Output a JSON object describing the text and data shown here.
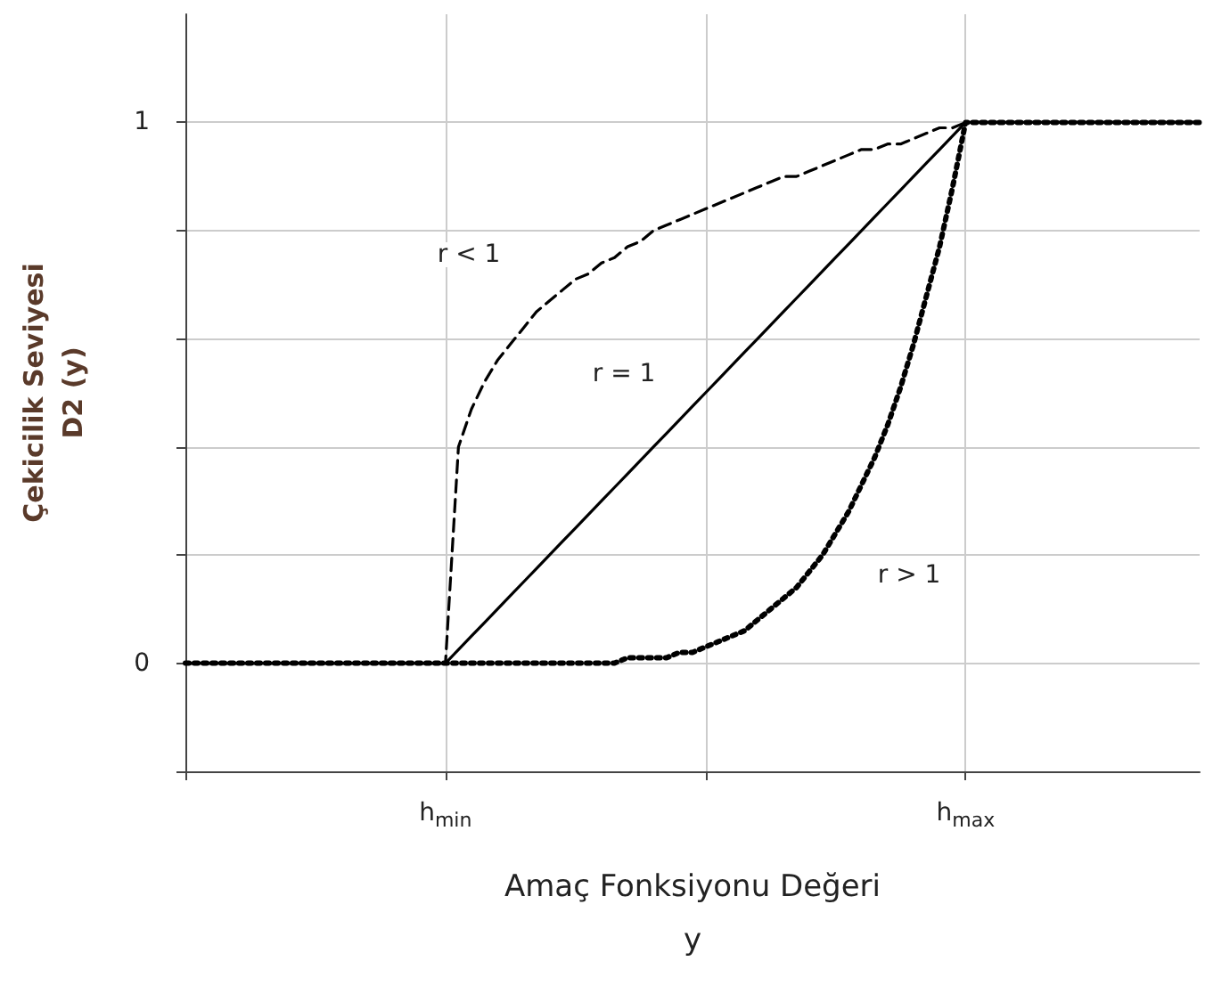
{
  "chart_data": {
    "type": "line",
    "xlabel": "Amaç Fonksiyonu Değeri\ny",
    "ylabel": "Çekicilik Seviyesi\nD2 (y)",
    "categories": [
      null,
      null,
      null,
      null,
      null,
      null,
      null,
      null,
      null,
      null,
      null,
      null,
      null,
      null,
      null,
      null,
      null,
      null,
      null,
      null,
      "h$_{min}$",
      null,
      null,
      null,
      null,
      null,
      null,
      null,
      null,
      null,
      null,
      null,
      null,
      null,
      null,
      null,
      null,
      null,
      null,
      null,
      null,
      null,
      null,
      null,
      null,
      null,
      null,
      null,
      null,
      null,
      null,
      null,
      null,
      null,
      null,
      null,
      null,
      null,
      null,
      null,
      "h$_{max}$",
      null,
      null,
      null,
      null,
      null,
      null,
      null,
      null,
      null,
      null,
      null,
      null,
      null,
      null,
      null,
      null,
      null,
      null
    ],
    "ylim": [
      -0.2,
      1.2
    ],
    "yticks": [
      {
        "value": -0.2,
        "label": null
      },
      0,
      {
        "value": 0.2,
        "label": null
      },
      {
        "value": 0.4,
        "label": null
      },
      {
        "value": 0.6,
        "label": null
      },
      {
        "value": 0.8,
        "label": null
      },
      1
    ],
    "grid": true,
    "marker": "none",
    "series": [
      {
        "name": "r < 1",
        "color": "#000000",
        "line_style": "dashed",
        "values": [
          0,
          0,
          0,
          0,
          0,
          0,
          0,
          0,
          0,
          0,
          0,
          0,
          0,
          0,
          0,
          0,
          0,
          0,
          0,
          0,
          0,
          0.4,
          0.47,
          0.52,
          0.56,
          0.59,
          0.62,
          0.65,
          0.67,
          0.69,
          0.71,
          0.72,
          0.74,
          0.75,
          0.77,
          0.78,
          0.8,
          0.81,
          0.82,
          0.83,
          0.84,
          0.85,
          0.86,
          0.87,
          0.88,
          0.89,
          0.9,
          0.9,
          0.91,
          0.92,
          0.93,
          0.94,
          0.95,
          0.95,
          0.96,
          0.96,
          0.97,
          0.98,
          0.99,
          0.99,
          1,
          1,
          1,
          1,
          1,
          1,
          1,
          1,
          1,
          1,
          1,
          1,
          1,
          1,
          1,
          1,
          1,
          1,
          1
        ]
      },
      {
        "name": "r = 1",
        "color": "#000000",
        "line_style": "solid",
        "values": [
          0,
          0,
          0,
          0,
          0,
          0,
          0,
          0,
          0,
          0,
          0,
          0,
          0,
          0,
          0,
          0,
          0,
          0,
          0,
          0,
          0,
          0.025,
          0.05,
          0.075,
          0.1,
          0.125,
          0.15,
          0.175,
          0.2,
          0.225,
          0.25,
          0.275,
          0.3,
          0.325,
          0.35,
          0.375,
          0.4,
          0.425,
          0.45,
          0.475,
          0.5,
          0.525,
          0.55,
          0.575,
          0.6,
          0.625,
          0.65,
          0.675,
          0.7,
          0.725,
          0.75,
          0.775,
          0.8,
          0.825,
          0.85,
          0.875,
          0.9,
          0.925,
          0.95,
          0.975,
          1,
          1,
          1,
          1,
          1,
          1,
          1,
          1,
          1,
          1,
          1,
          1,
          1,
          1,
          1,
          1,
          1,
          1,
          1
        ]
      },
      {
        "name": "r > 1",
        "color": "#000000",
        "line_style": "dotted",
        "values": [
          0,
          0,
          0,
          0,
          0,
          0,
          0,
          0,
          0,
          0,
          0,
          0,
          0,
          0,
          0,
          0,
          0,
          0,
          0,
          0,
          0,
          0,
          0,
          0,
          0,
          0,
          0,
          0,
          0,
          0,
          0,
          0,
          0,
          0,
          0.01,
          0.01,
          0.01,
          0.01,
          0.02,
          0.02,
          0.03,
          0.04,
          0.05,
          0.06,
          0.08,
          0.1,
          0.12,
          0.14,
          0.17,
          0.2,
          0.24,
          0.28,
          0.33,
          0.38,
          0.44,
          0.51,
          0.59,
          0.68,
          0.77,
          0.88,
          1,
          1,
          1,
          1,
          1,
          1,
          1,
          1,
          1,
          1,
          1,
          1,
          1,
          1,
          1,
          1,
          1,
          1,
          1
        ]
      }
    ]
  }
}
